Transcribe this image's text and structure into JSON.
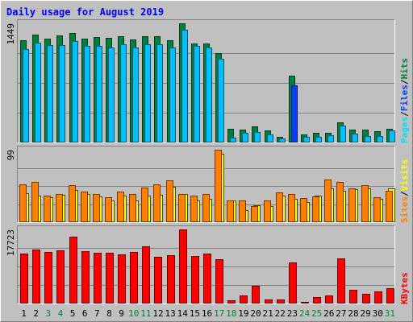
{
  "colors": {
    "frame_bg": "#c0c0c0",
    "frame_light": "#ffffff",
    "frame_dark": "#808080",
    "title": "#0000ff",
    "hits": "#008040",
    "files": "#00c0ff",
    "files_highlight": "#0040ff",
    "pages": "#00e0ff",
    "visits": "#ffff00",
    "sites": "#ff8000",
    "kbytes": "#ff0000",
    "weekday_label": "#000000",
    "weekend_label": "#008040",
    "gridline": "#808080"
  },
  "chart_data": {
    "type": "bar",
    "title": "Daily usage for August 2019",
    "categories": [
      "1",
      "2",
      "3",
      "4",
      "5",
      "6",
      "7",
      "8",
      "9",
      "10",
      "11",
      "12",
      "13",
      "14",
      "15",
      "16",
      "17",
      "18",
      "19",
      "20",
      "21",
      "22",
      "23",
      "24",
      "25",
      "26",
      "27",
      "28",
      "29",
      "30",
      "31"
    ],
    "weekend_days": [
      "3",
      "4",
      "10",
      "11",
      "17",
      "18",
      "24",
      "25",
      "31"
    ],
    "highlighted_day": "23",
    "panels": [
      {
        "id": "top",
        "max_label": "1449",
        "ylim": [
          0,
          1449
        ],
        "axis_labels": [
          {
            "text": "Pages",
            "color": "#00e0ff"
          },
          {
            "text": "/",
            "color": "#000000"
          },
          {
            "text": "Files",
            "color": "#0040ff"
          },
          {
            "text": "/",
            "color": "#000000"
          },
          {
            "text": "Hits",
            "color": "#008040"
          }
        ],
        "series": [
          {
            "name": "Hits",
            "values": [
              1240,
              1310,
              1260,
              1300,
              1330,
              1260,
              1280,
              1270,
              1290,
              1250,
              1290,
              1290,
              1240,
              1449,
              1200,
              1200,
              1090,
              170,
              160,
              200,
              150,
              70,
              810,
              100,
              120,
              120,
              240,
              160,
              160,
              140,
              170
            ]
          },
          {
            "name": "Files",
            "values": [
              1140,
              1210,
              1180,
              1180,
              1230,
              1170,
              1170,
              1160,
              1190,
              1160,
              1190,
              1190,
              1160,
              1370,
              1170,
              1160,
              1020,
              60,
              120,
              130,
              100,
              50,
              700,
              70,
              70,
              90,
              210,
              110,
              80,
              80,
              150
            ]
          },
          {
            "name": "Pages",
            "values": [
              0,
              0,
              0,
              0,
              0,
              0,
              0,
              0,
              0,
              0,
              0,
              0,
              0,
              0,
              0,
              0,
              0,
              0,
              0,
              0,
              0,
              0,
              0,
              0,
              0,
              0,
              0,
              0,
              0,
              0,
              0
            ]
          }
        ]
      },
      {
        "id": "middle",
        "max_label": "99",
        "ylim": [
          0,
          99
        ],
        "axis_labels": [
          {
            "text": "Sites",
            "color": "#ff8000"
          },
          {
            "text": "/",
            "color": "#000000"
          },
          {
            "text": "Visits",
            "color": "#ffff00"
          }
        ],
        "series": [
          {
            "name": "Visits",
            "values": [
              40,
              36,
              34,
              37,
              44,
              39,
              35,
              30,
              36,
              30,
              36,
              37,
              48,
              39,
              30,
              32,
              93,
              30,
              17,
              23,
              22,
              36,
              32,
              27,
              36,
              46,
              43,
              45,
              46,
              32,
              46
            ]
          },
          {
            "name": "Sites",
            "values": [
              52,
              55,
              36,
              38,
              51,
              42,
              38,
              34,
              42,
              39,
              47,
              52,
              57,
              38,
              36,
              38,
              99,
              30,
              30,
              22,
              30,
              41,
              38,
              33,
              35,
              58,
              55,
              46,
              51,
              34,
              43
            ]
          }
        ]
      },
      {
        "id": "bottom",
        "max_label": "17723",
        "ylim": [
          0,
          17723
        ],
        "axis_labels": [
          {
            "text": "KBytes",
            "color": "#ff0000"
          }
        ],
        "series": [
          {
            "name": "KBytes",
            "values": [
              11900,
              12900,
              12400,
              12800,
              15900,
              12500,
              12200,
              12200,
              11800,
              12300,
              13600,
              11100,
              11600,
              17723,
              11400,
              12000,
              10500,
              800,
              1900,
              4200,
              880,
              880,
              9800,
              430,
              1500,
              1900,
              10700,
              3200,
              2400,
              2900,
              3700
            ]
          }
        ]
      }
    ]
  }
}
